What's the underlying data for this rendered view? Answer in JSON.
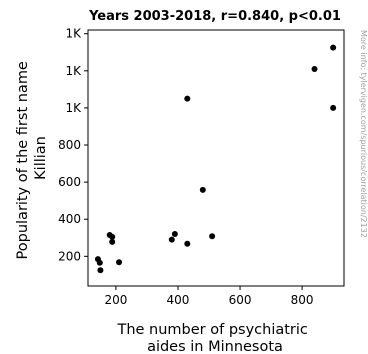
{
  "chart_data": {
    "type": "scatter",
    "title": "Years 2003-2018, r=0.840, p<0.01",
    "xlabel_lines": [
      "The number of psychiatric",
      "aides in Minnesota"
    ],
    "ylabel_lines": [
      "Popularity of the first name",
      "Killian"
    ],
    "xlim": [
      110,
      935
    ],
    "ylim": [
      40,
      1420
    ],
    "x_ticks": [
      {
        "value": 200,
        "label": "200"
      },
      {
        "value": 400,
        "label": "400"
      },
      {
        "value": 600,
        "label": "600"
      },
      {
        "value": 800,
        "label": "800"
      }
    ],
    "y_ticks": [
      {
        "value": 200,
        "label": "200"
      },
      {
        "value": 400,
        "label": "400"
      },
      {
        "value": 600,
        "label": "600"
      },
      {
        "value": 800,
        "label": "800"
      },
      {
        "value": 1000,
        "label": "1K"
      },
      {
        "value": 1200,
        "label": "1K"
      },
      {
        "value": 1400,
        "label": "1K"
      }
    ],
    "grid": false,
    "points": [
      {
        "x": 142,
        "y": 185
      },
      {
        "x": 148,
        "y": 165
      },
      {
        "x": 150,
        "y": 125
      },
      {
        "x": 180,
        "y": 315
      },
      {
        "x": 188,
        "y": 305
      },
      {
        "x": 188,
        "y": 278
      },
      {
        "x": 210,
        "y": 168
      },
      {
        "x": 380,
        "y": 290
      },
      {
        "x": 390,
        "y": 320
      },
      {
        "x": 430,
        "y": 268
      },
      {
        "x": 430,
        "y": 1050
      },
      {
        "x": 480,
        "y": 558
      },
      {
        "x": 510,
        "y": 308
      },
      {
        "x": 840,
        "y": 1210
      },
      {
        "x": 900,
        "y": 1325
      },
      {
        "x": 900,
        "y": 1000
      }
    ],
    "point_color": "#000000"
  },
  "watermark": "More info: tylervigen.com/spurious/correlation/2132"
}
